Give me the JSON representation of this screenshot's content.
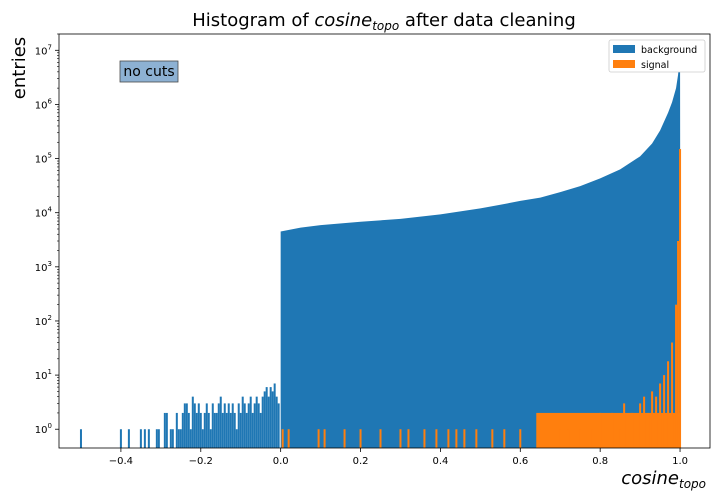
{
  "chart_data": {
    "type": "bar",
    "title_prefix": "Histogram of ",
    "title_var": "cosine",
    "title_sub": "topo",
    "title_suffix": " after data cleaning",
    "xlabel_var": "cosine",
    "xlabel_sub": "topo",
    "ylabel": "entries",
    "xlim": [
      -0.555,
      1.075
    ],
    "ylim": [
      0.45,
      20000000
    ],
    "yscale": "log",
    "grid": false,
    "legend_position": "top-right",
    "annotation": "no cuts",
    "x_ticks": [
      "−0.4",
      "−0.2",
      "0.0",
      "0.2",
      "0.4",
      "0.6",
      "0.8",
      "1.0"
    ],
    "x_tick_values": [
      -0.4,
      -0.2,
      0.0,
      0.2,
      0.4,
      0.6,
      0.8,
      1.0
    ],
    "y_ticks": [
      {
        "value": 1,
        "base": "10",
        "exp": "0"
      },
      {
        "value": 10,
        "base": "10",
        "exp": "1"
      },
      {
        "value": 100,
        "base": "10",
        "exp": "2"
      },
      {
        "value": 1000,
        "base": "10",
        "exp": "3"
      },
      {
        "value": 10000,
        "base": "10",
        "exp": "4"
      },
      {
        "value": 100000,
        "base": "10",
        "exp": "5"
      },
      {
        "value": 1000000,
        "base": "10",
        "exp": "6"
      },
      {
        "value": 10000000,
        "base": "10",
        "exp": "7"
      }
    ],
    "series": [
      {
        "name": "background",
        "color": "#1f77b4",
        "bins": [
          [
            -0.5,
            1
          ],
          [
            -0.4,
            1
          ],
          [
            -0.38,
            1
          ],
          [
            -0.35,
            1
          ],
          [
            -0.34,
            1
          ],
          [
            -0.33,
            1
          ],
          [
            -0.31,
            1
          ],
          [
            -0.305,
            1
          ],
          [
            -0.29,
            2
          ],
          [
            -0.285,
            2
          ],
          [
            -0.275,
            1
          ],
          [
            -0.27,
            1
          ],
          [
            -0.26,
            2
          ],
          [
            -0.255,
            1
          ],
          [
            -0.25,
            1
          ],
          [
            -0.245,
            2
          ],
          [
            -0.24,
            3
          ],
          [
            -0.235,
            3
          ],
          [
            -0.23,
            2
          ],
          [
            -0.225,
            1
          ],
          [
            -0.22,
            4
          ],
          [
            -0.215,
            3
          ],
          [
            -0.21,
            2
          ],
          [
            -0.205,
            3
          ],
          [
            -0.2,
            2
          ],
          [
            -0.195,
            1
          ],
          [
            -0.19,
            2
          ],
          [
            -0.185,
            3
          ],
          [
            -0.18,
            2
          ],
          [
            -0.175,
            1
          ],
          [
            -0.17,
            3
          ],
          [
            -0.165,
            2
          ],
          [
            -0.16,
            2
          ],
          [
            -0.155,
            3
          ],
          [
            -0.15,
            4
          ],
          [
            -0.145,
            2
          ],
          [
            -0.14,
            3
          ],
          [
            -0.135,
            2
          ],
          [
            -0.13,
            3
          ],
          [
            -0.125,
            2
          ],
          [
            -0.12,
            3
          ],
          [
            -0.115,
            2
          ],
          [
            -0.11,
            1
          ],
          [
            -0.105,
            3
          ],
          [
            -0.1,
            2
          ],
          [
            -0.095,
            4
          ],
          [
            -0.09,
            3
          ],
          [
            -0.085,
            2
          ],
          [
            -0.08,
            3
          ],
          [
            -0.075,
            4
          ],
          [
            -0.07,
            2
          ],
          [
            -0.065,
            3
          ],
          [
            -0.06,
            4
          ],
          [
            -0.055,
            3
          ],
          [
            -0.05,
            2
          ],
          [
            -0.045,
            4
          ],
          [
            -0.04,
            5
          ],
          [
            -0.035,
            6
          ],
          [
            -0.03,
            4
          ],
          [
            -0.025,
            6
          ],
          [
            -0.02,
            5
          ],
          [
            -0.015,
            7
          ],
          [
            -0.01,
            4
          ],
          [
            -0.005,
            3
          ]
        ],
        "curve": [
          [
            0.0,
            4500
          ],
          [
            0.05,
            5300
          ],
          [
            0.1,
            5900
          ],
          [
            0.2,
            6800
          ],
          [
            0.3,
            7700
          ],
          [
            0.4,
            9300
          ],
          [
            0.5,
            12000
          ],
          [
            0.55,
            14000
          ],
          [
            0.6,
            16500
          ],
          [
            0.65,
            19000
          ],
          [
            0.7,
            24000
          ],
          [
            0.75,
            31000
          ],
          [
            0.8,
            43000
          ],
          [
            0.85,
            63000
          ],
          [
            0.9,
            110000
          ],
          [
            0.93,
            190000
          ],
          [
            0.95,
            330000
          ],
          [
            0.97,
            700000
          ],
          [
            0.98,
            1100000
          ],
          [
            0.99,
            2000000
          ],
          [
            0.995,
            3500000
          ],
          [
            0.998,
            6000000
          ],
          [
            1.0,
            11000000
          ]
        ]
      },
      {
        "name": "signal",
        "color": "#ff7f0e",
        "bins": [
          [
            0.005,
            1
          ],
          [
            0.02,
            1
          ],
          [
            0.095,
            1
          ],
          [
            0.11,
            1
          ],
          [
            0.16,
            1
          ],
          [
            0.2,
            1
          ],
          [
            0.25,
            1
          ],
          [
            0.3,
            1
          ],
          [
            0.32,
            1
          ],
          [
            0.36,
            1
          ],
          [
            0.39,
            1
          ],
          [
            0.42,
            1
          ],
          [
            0.44,
            1
          ],
          [
            0.46,
            1
          ],
          [
            0.49,
            1
          ],
          [
            0.53,
            1
          ],
          [
            0.56,
            1
          ],
          [
            0.6,
            1
          ],
          [
            0.65,
            1
          ],
          [
            0.7,
            1
          ],
          [
            0.72,
            1
          ],
          [
            0.75,
            1
          ],
          [
            0.78,
            1
          ],
          [
            0.8,
            2
          ],
          [
            0.83,
            2
          ],
          [
            0.85,
            1
          ],
          [
            0.86,
            3
          ],
          [
            0.88,
            2
          ],
          [
            0.9,
            3
          ],
          [
            0.91,
            4
          ],
          [
            0.92,
            2
          ],
          [
            0.93,
            5
          ],
          [
            0.94,
            4
          ],
          [
            0.95,
            7
          ],
          [
            0.96,
            10
          ],
          [
            0.97,
            18
          ],
          [
            0.98,
            40
          ],
          [
            0.99,
            200
          ],
          [
            0.995,
            3000
          ],
          [
            1.0,
            150000
          ]
        ],
        "dense_from": 0.64,
        "dense_value": 2
      }
    ]
  }
}
